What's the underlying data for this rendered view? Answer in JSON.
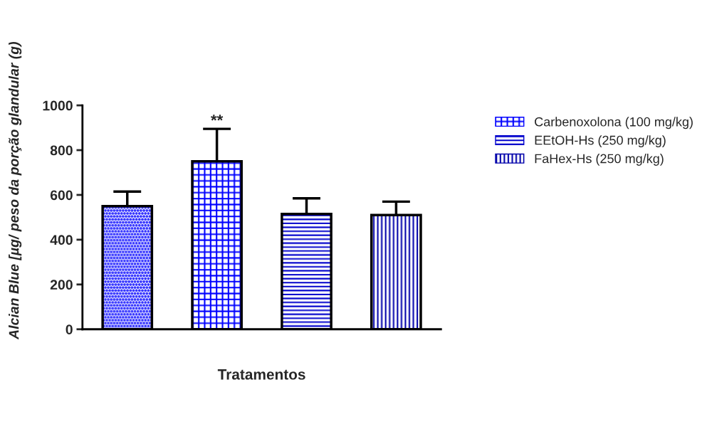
{
  "chart_data": {
    "type": "bar",
    "categories": [
      null,
      null,
      null,
      null
    ],
    "series": [
      {
        "color": "#3333ff",
        "values": [
          550,
          null,
          null,
          null
        ],
        "errors": [
          65,
          null,
          null,
          null
        ]
      },
      {
        "name": "Carbenoxolona (100 mg/kg)",
        "color": "#0000ff",
        "values": [
          null,
          750,
          null,
          null
        ],
        "errors": [
          null,
          145,
          null,
          null
        ]
      },
      {
        "name": "EEtOH-Hs (250 mg/kg)",
        "color": "#0000cc",
        "values": [
          null,
          null,
          515,
          null
        ],
        "errors": [
          null,
          null,
          70,
          null
        ]
      },
      {
        "name": "FaHex-Hs (250 mg/kg)",
        "color": "#0000aa",
        "values": [
          null,
          null,
          null,
          510
        ],
        "errors": [
          null,
          null,
          null,
          60
        ]
      }
    ],
    "xlabel": "Tratamentos",
    "ylabel": "Alcian Blue [µg/ peso da porção glandular (g)",
    "ylim": [
      0,
      1000
    ],
    "yticks": [
      0,
      200,
      400,
      600,
      800,
      1000
    ],
    "annotations": [
      {
        "text": "**",
        "y": 895
      }
    ],
    "legend": "right",
    "grid": false,
    "tick_labels": "y"
  }
}
